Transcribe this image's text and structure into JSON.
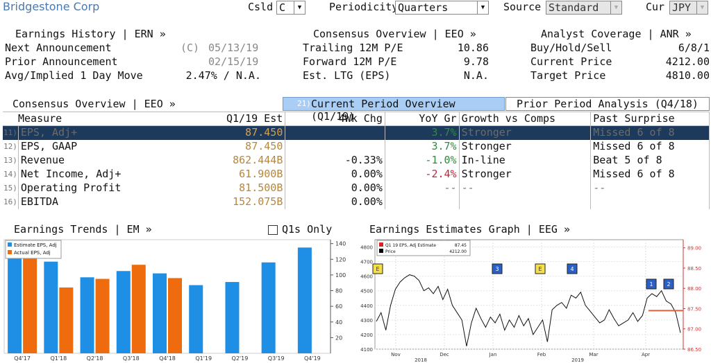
{
  "header": {
    "security": "Bridgestone Corp",
    "csld_label": "Csld",
    "csld_value": "C",
    "periodicity_label": "Periodicity",
    "periodicity_value": "Quarters",
    "source_label": "Source",
    "source_value": "Standard",
    "cur_label": "Cur",
    "cur_value": "JPY"
  },
  "earnings_history": {
    "title": "Earnings History | ERN »",
    "next_label": "Next Announcement",
    "next_flag": "(C)",
    "next_value": "05/13/19",
    "prior_label": "Prior Announcement",
    "prior_value": "02/15/19",
    "move_label": "Avg/Implied 1 Day Move",
    "move_value": "2.47% / N.A."
  },
  "consensus_top": {
    "title": "Consensus Overview | EEO »",
    "rows": [
      {
        "label": "Trailing 12M P/E",
        "value": "10.86"
      },
      {
        "label": "Forward 12M P/E",
        "value": "9.78"
      },
      {
        "label": "Est. LTG (EPS)",
        "value": "N.A."
      }
    ]
  },
  "analyst": {
    "title": "Analyst Coverage | ANR »",
    "rows": [
      {
        "label": "Buy/Hold/Sell",
        "value": "6/8/1"
      },
      {
        "label": "Current Price",
        "value": "4212.00"
      },
      {
        "label": "Target Price",
        "value": "4810.00"
      }
    ]
  },
  "consensus_section": {
    "title": "Consensus Overview | EEO »",
    "tab_active_num": "21)",
    "tab_active": "Current Period Overview (Q1/19)",
    "tab_inactive": "Prior Period Analysis (Q4/18)"
  },
  "measures": {
    "headers": [
      "Measure",
      "Q1/19 Est",
      "4Wk Chg",
      "YoY Gr",
      "Growth vs Comps",
      "Past Surprise"
    ],
    "rows": [
      {
        "idx": "11)",
        "name": "EPS, Adj+",
        "est": "87.450",
        "chg": "",
        "yoy": "3.7%",
        "comp": "Stronger",
        "surprise": "Missed 6 of 8"
      },
      {
        "idx": "12)",
        "name": "EPS, GAAP",
        "est": "87.450",
        "chg": "",
        "yoy": "3.7%",
        "comp": "Stronger",
        "surprise": "Missed 6 of 8"
      },
      {
        "idx": "13)",
        "name": "Revenue",
        "est": "862.444B",
        "chg": "-0.33%",
        "yoy": "-1.0%",
        "comp": "In-line",
        "surprise": "Beat 5 of 8"
      },
      {
        "idx": "14)",
        "name": "Net Income, Adj+",
        "est": "61.900B",
        "chg": "0.00%",
        "yoy": "-2.4%",
        "comp": "Stronger",
        "surprise": "Missed 6 of 8"
      },
      {
        "idx": "15)",
        "name": "Operating Profit",
        "est": "81.500B",
        "chg": "0.00%",
        "yoy": "--",
        "comp": "--",
        "surprise": "--"
      },
      {
        "idx": "16)",
        "name": "EBITDA",
        "est": "152.075B",
        "chg": "0.00%",
        "yoy": "",
        "comp": "",
        "surprise": ""
      }
    ]
  },
  "trends": {
    "title": "Earnings Trends | EM »",
    "q1s_label": "Q1s Only"
  },
  "graph": {
    "title": "Earnings Estimates Graph | EEG »"
  },
  "chart_data": [
    {
      "type": "bar",
      "categories": [
        "Q4'17",
        "Q1'18",
        "Q2'18",
        "Q3'18",
        "Q4'18",
        "Q1'19",
        "Q2'19",
        "Q3'19",
        "Q4'19"
      ],
      "series": [
        {
          "name": "Estimate EPS, Adj",
          "values": [
            125,
            117,
            97,
            105,
            102,
            87,
            91,
            116,
            135
          ],
          "color": "#1f8fe6"
        },
        {
          "name": "Actual EPS, Adj",
          "values": [
            125,
            84,
            95,
            113,
            96,
            null,
            null,
            null,
            null
          ],
          "color": "#ef6c0e"
        }
      ],
      "yticks": [
        20,
        40,
        60,
        80,
        100,
        120,
        140
      ],
      "ylim": [
        0,
        145
      ]
    },
    {
      "type": "line",
      "legend": [
        {
          "label": "Q1 19 EPS, Adj Estimate",
          "value": "87.45",
          "color": "#d22"
        },
        {
          "label": "Price",
          "value": "4212.00",
          "color": "#000"
        }
      ],
      "left_ticks": [
        4100,
        4200,
        4300,
        4400,
        4500,
        4600,
        4700,
        4800
      ],
      "right_ticks": [
        "86.50",
        "87.00",
        "87.50",
        "88.00",
        "88.50",
        "89.00"
      ],
      "months": [
        "Nov",
        "Dec",
        "Jan",
        "Feb",
        "Mar",
        "Apr"
      ],
      "years": [
        "2018",
        "2019"
      ],
      "markers": [
        {
          "label": "E",
          "kind": "yellow"
        },
        {
          "label": "3",
          "kind": "blue"
        },
        {
          "label": "E",
          "kind": "yellow"
        },
        {
          "label": "4",
          "kind": "blue"
        },
        {
          "label": "1",
          "kind": "blue"
        },
        {
          "label": "2",
          "kind": "blue"
        }
      ],
      "price": [
        4290,
        4350,
        4230,
        4400,
        4510,
        4560,
        4590,
        4610,
        4600,
        4570,
        4500,
        4520,
        4480,
        4530,
        4440,
        4510,
        4400,
        4350,
        4300,
        4120,
        4280,
        4380,
        4310,
        4250,
        4320,
        4280,
        4340,
        4230,
        4300,
        4250,
        4330,
        4260,
        4310,
        4200,
        4250,
        4300,
        4150,
        4370,
        4400,
        4420,
        4380,
        4470,
        4450,
        4490,
        4400,
        4360,
        4320,
        4280,
        4300,
        4370,
        4310,
        4260,
        4280,
        4300,
        4350,
        4290,
        4330,
        4450,
        4480,
        4460,
        4500,
        4430,
        4410,
        4350,
        4212
      ],
      "estimate_level": 87.45
    }
  ]
}
